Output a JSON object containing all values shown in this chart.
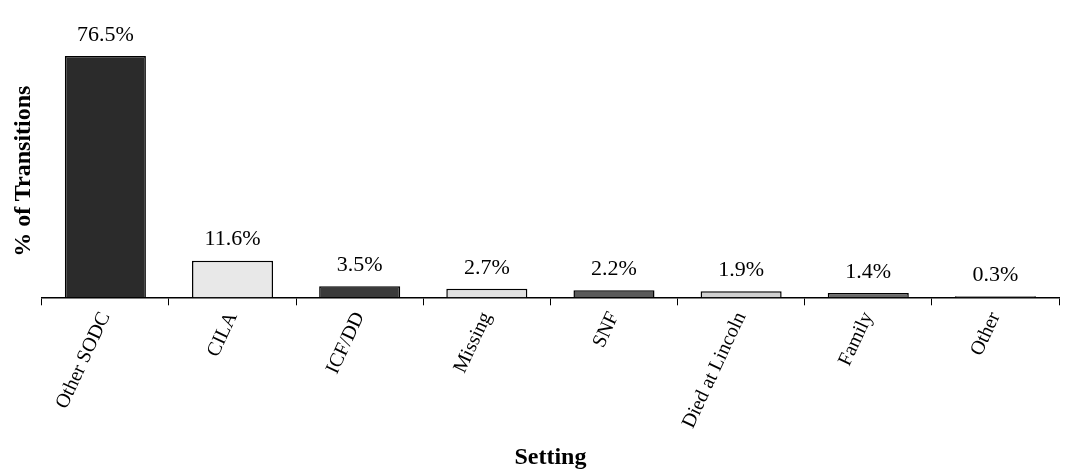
{
  "chart_data": {
    "type": "bar",
    "xlabel": "Setting",
    "ylabel": "% of Transitions",
    "categories": [
      "Other SODC",
      "CILA",
      "ICF/DD",
      "Missing",
      "SNF",
      "Died at Lincoln",
      "Family",
      "Other"
    ],
    "values": [
      76.5,
      11.6,
      3.5,
      2.7,
      2.2,
      1.9,
      1.4,
      0.3
    ],
    "colors": [
      "#2b2b2b",
      "#e8e8e8",
      "#3a3a3a",
      "#e0e0e0",
      "#5a5a5a",
      "#d0d0d0",
      "#6a6a6a",
      "#9a9a9a"
    ],
    "value_labels": [
      "76.5%",
      "11.6%",
      "3.5%",
      "2.7%",
      "2.2%",
      "1.9%",
      "1.4%",
      "0.3%"
    ],
    "tick_labels": "x",
    "grid": false,
    "legend": false
  }
}
